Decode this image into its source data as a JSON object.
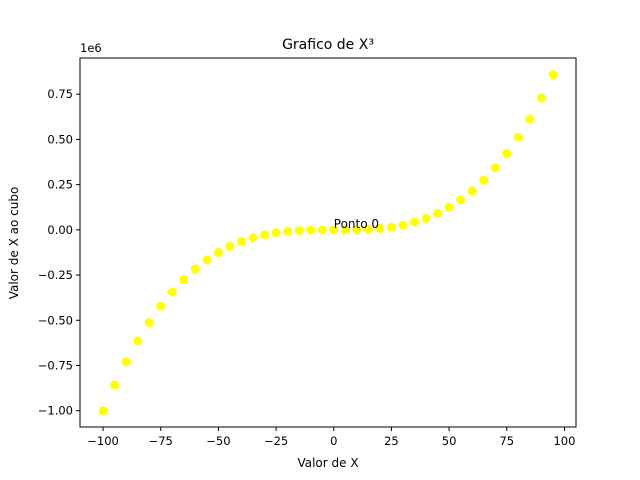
{
  "chart_data": {
    "type": "scatter",
    "title": "Grafico de X³",
    "xlabel": "Valor de X",
    "ylabel": "Valor de X ao cubo",
    "y_offset_label": "1e6",
    "xlim": [
      -110,
      105
    ],
    "ylim": [
      -1.09,
      0.95
    ],
    "x_ticks": [
      -100,
      -75,
      -50,
      -25,
      0,
      25,
      50,
      75,
      100
    ],
    "x_tick_labels": [
      "−100",
      "−75",
      "−50",
      "−25",
      "0",
      "25",
      "50",
      "75",
      "100"
    ],
    "y_ticks": [
      -1.0,
      -0.75,
      -0.5,
      -0.25,
      0.0,
      0.25,
      0.5,
      0.75
    ],
    "y_tick_labels": [
      "−1.00",
      "−0.75",
      "−0.50",
      "−0.25",
      "0.00",
      "0.25",
      "0.50",
      "0.75"
    ],
    "grid": false,
    "legend": "none",
    "marker_color": "#ffff00",
    "series": [
      {
        "x": [
          -100,
          -95,
          -90,
          -85,
          -80,
          -75,
          -70,
          -65,
          -60,
          -55,
          -50,
          -45,
          -40,
          -35,
          -30,
          -25,
          -20,
          -15,
          -10,
          -5,
          0,
          5,
          10,
          15,
          20,
          25,
          30,
          35,
          40,
          45,
          50,
          55,
          60,
          65,
          70,
          75,
          80,
          85,
          90,
          95
        ],
        "y": [
          -1.0,
          -0.857375,
          -0.729,
          -0.614125,
          -0.512,
          -0.421875,
          -0.343,
          -0.274625,
          -0.216,
          -0.166375,
          -0.125,
          -0.091125,
          -0.064,
          -0.042875,
          -0.027,
          -0.015625,
          -0.008,
          -0.003375,
          -0.001,
          -0.000125,
          0.0,
          0.000125,
          0.001,
          0.003375,
          0.008,
          0.015625,
          0.027,
          0.042875,
          0.064,
          0.091125,
          0.125,
          0.166375,
          0.216,
          0.274625,
          0.343,
          0.421875,
          0.512,
          0.614125,
          0.729,
          0.857375
        ]
      }
    ],
    "annotations": [
      {
        "text": "Ponto 0",
        "x": 0,
        "y": 0.0
      }
    ]
  }
}
